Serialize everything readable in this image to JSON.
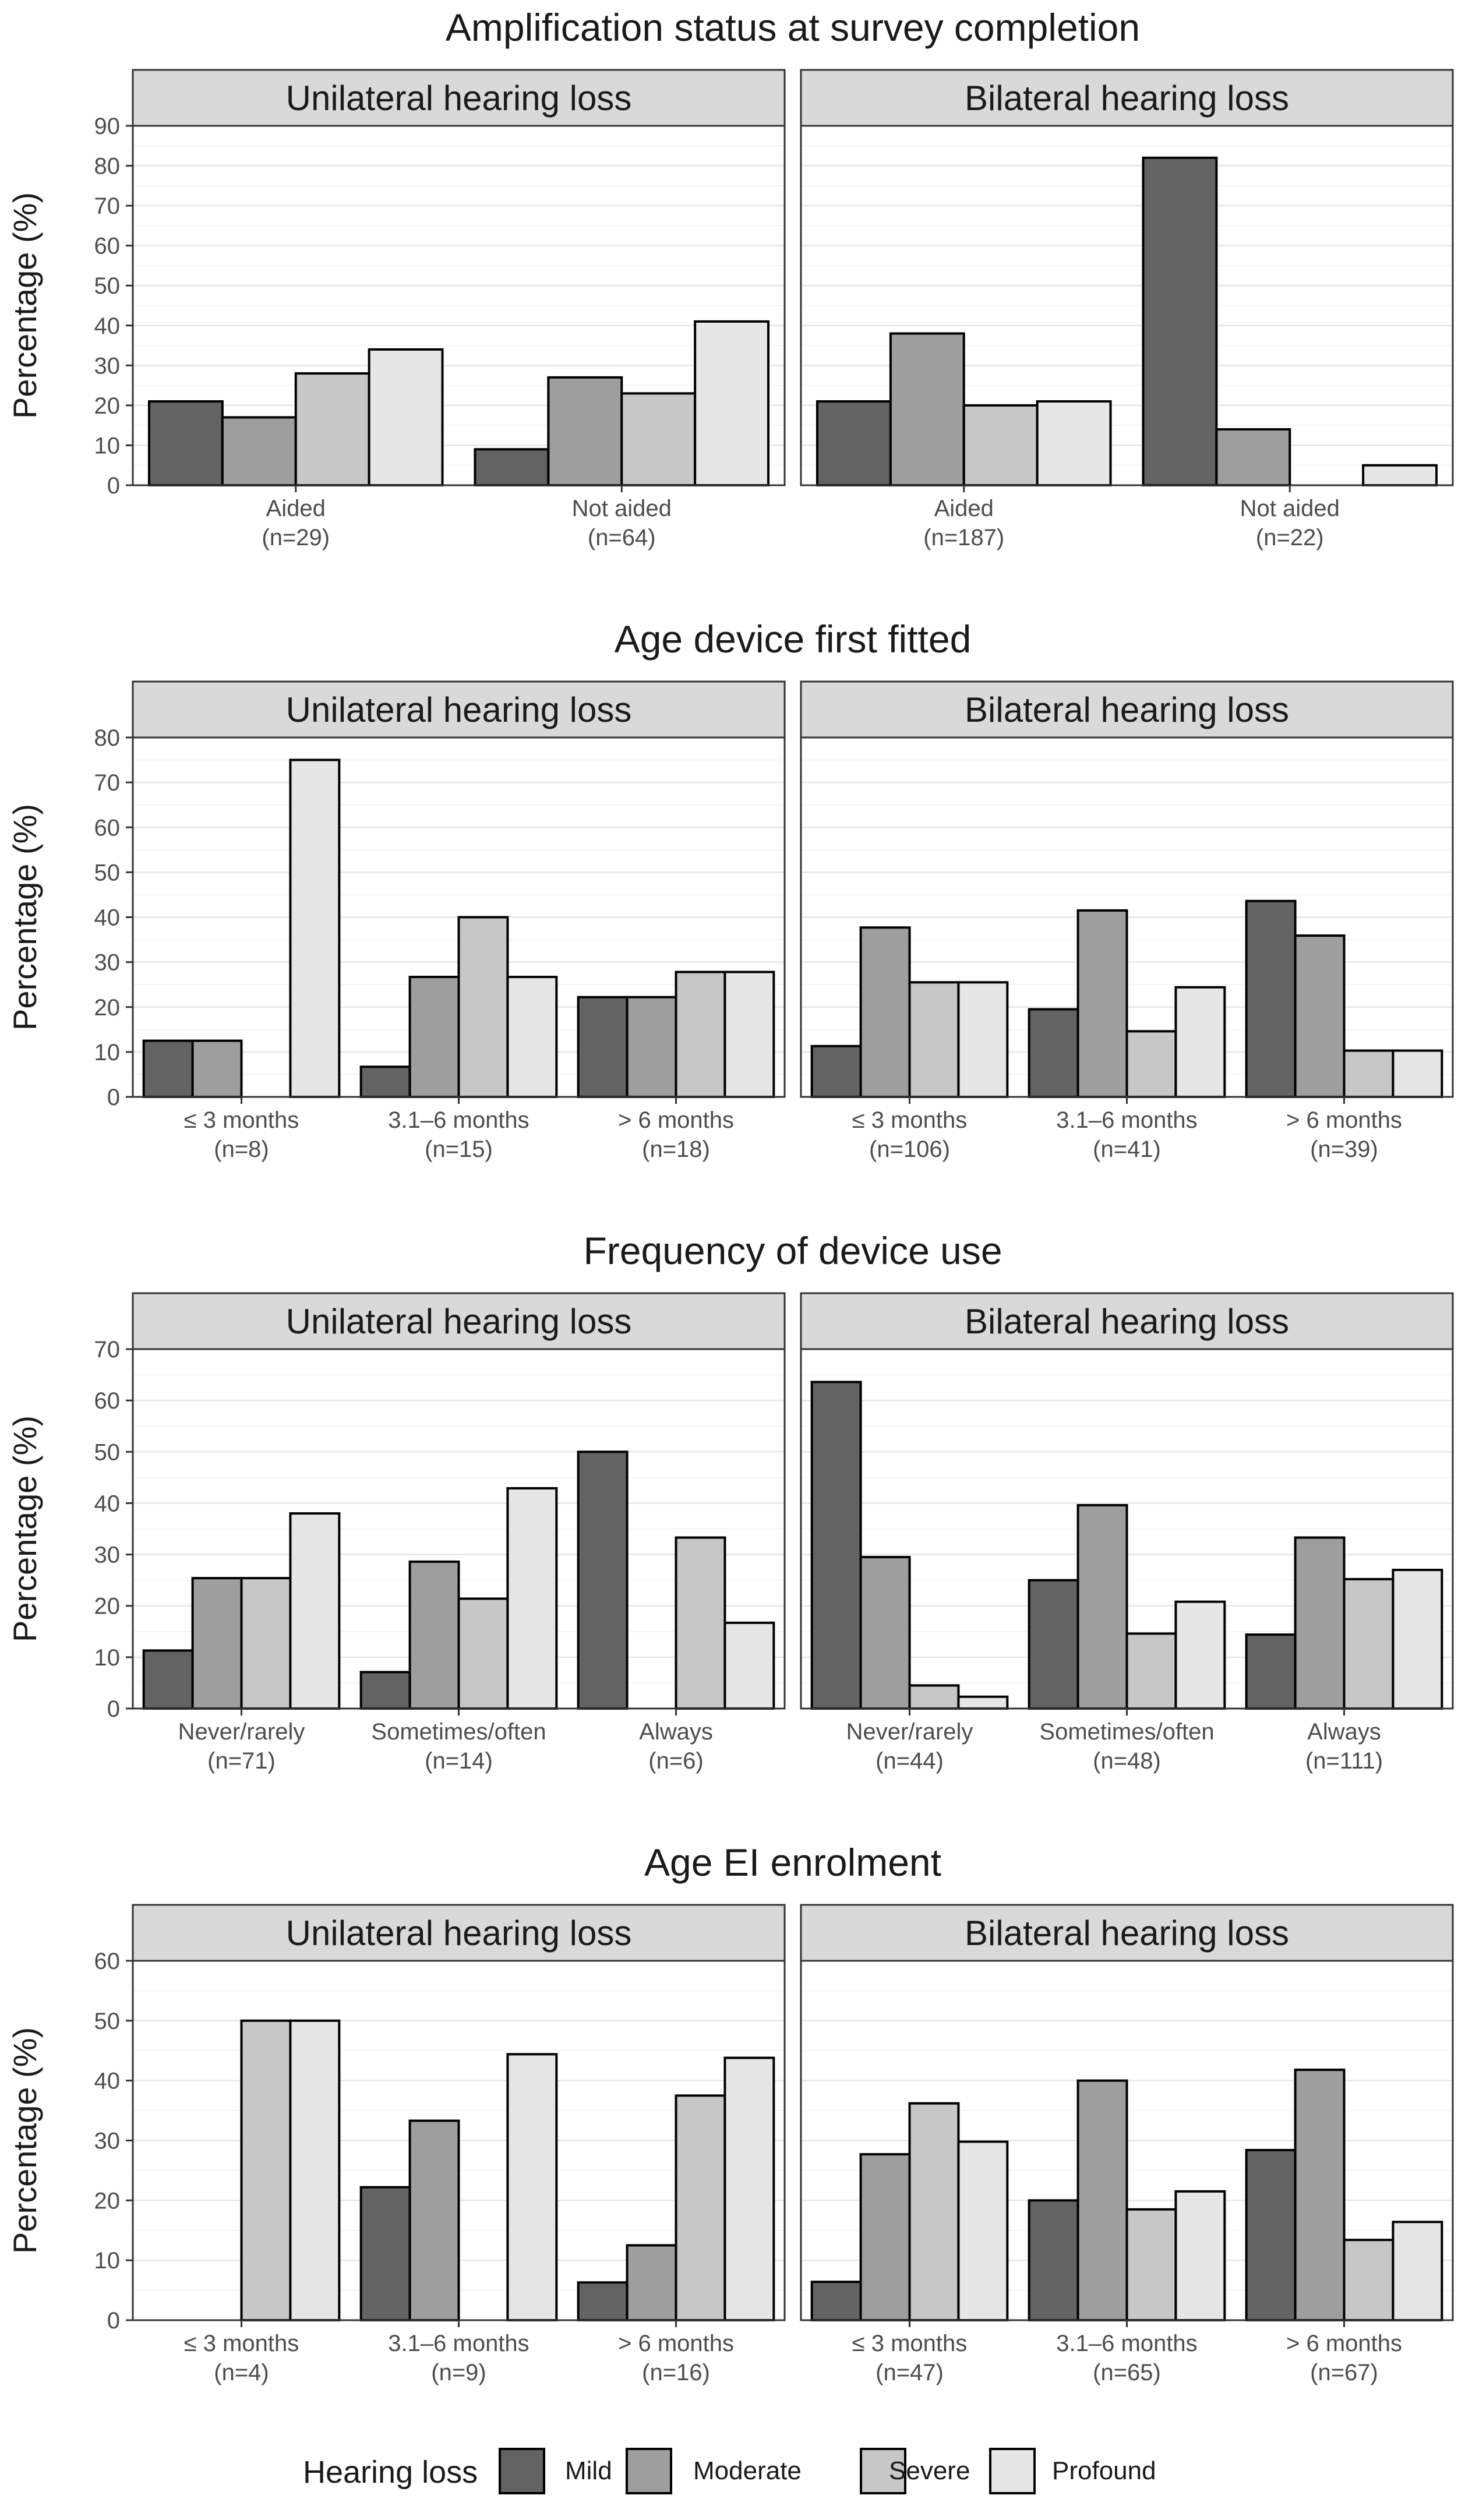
{
  "legend": {
    "title": "Hearing loss",
    "levels": [
      "Mild",
      "Moderate",
      "Severe",
      "Profound"
    ],
    "colors": [
      "#636363",
      "#9e9e9e",
      "#c7c7c7",
      "#e6e6e6"
    ]
  },
  "chart_data": [
    {
      "type": "bar",
      "title": "Amplification status at survey completion",
      "ylabel": "Percentage (%)",
      "ylim": [
        0,
        90
      ],
      "yticks": [
        "0",
        "10",
        "20",
        "30",
        "40",
        "50",
        "60",
        "70",
        "80",
        "90"
      ],
      "panels": [
        {
          "strip": "Unilateral hearing loss",
          "categories": [
            {
              "label": "Aided",
              "n": "(n=29)",
              "values": [
                21,
                17,
                28,
                34
              ]
            },
            {
              "label": "Not aided",
              "n": "(n=64)",
              "values": [
                9,
                27,
                23,
                41
              ]
            }
          ]
        },
        {
          "strip": "Bilateral hearing loss",
          "categories": [
            {
              "label": "Aided",
              "n": "(n=187)",
              "values": [
                21,
                38,
                20,
                21
              ]
            },
            {
              "label": "Not aided",
              "n": "(n=22)",
              "values": [
                82,
                14,
                0,
                5
              ]
            }
          ]
        }
      ]
    },
    {
      "type": "bar",
      "title": "Age device first fitted",
      "ylabel": "Percentage (%)",
      "ylim": [
        0,
        80
      ],
      "yticks": [
        "0",
        "10",
        "20",
        "30",
        "40",
        "50",
        "60",
        "70",
        "80"
      ],
      "panels": [
        {
          "strip": "Unilateral hearing loss",
          "categories": [
            {
              "label": "≤ 3 months",
              "n": "(n=8)",
              "values": [
                12.5,
                12.5,
                0,
                75
              ]
            },
            {
              "label": "3.1–6 months",
              "n": "(n=15)",
              "values": [
                6.7,
                26.7,
                40,
                26.7
              ]
            },
            {
              "label": "> 6 months",
              "n": "(n=18)",
              "values": [
                22.2,
                22.2,
                27.8,
                27.8
              ]
            }
          ]
        },
        {
          "strip": "Bilateral hearing loss",
          "categories": [
            {
              "label": "≤ 3 months",
              "n": "(n=106)",
              "values": [
                11.3,
                37.7,
                25.5,
                25.5
              ]
            },
            {
              "label": "3.1–6 months",
              "n": "(n=41)",
              "values": [
                19.5,
                41.5,
                14.6,
                24.4
              ]
            },
            {
              "label": "> 6 months",
              "n": "(n=39)",
              "values": [
                43.6,
                35.9,
                10.3,
                10.3
              ]
            }
          ]
        }
      ]
    },
    {
      "type": "bar",
      "title": "Frequency of device use",
      "ylabel": "Percentage (%)",
      "ylim": [
        0,
        70
      ],
      "yticks": [
        "0",
        "10",
        "20",
        "30",
        "40",
        "50",
        "60",
        "70"
      ],
      "panels": [
        {
          "strip": "Unilateral hearing loss",
          "categories": [
            {
              "label": "Never/rarely",
              "n": "(n=71)",
              "values": [
                11.3,
                25.4,
                25.4,
                38
              ]
            },
            {
              "label": "Sometimes/often",
              "n": "(n=14)",
              "values": [
                7.1,
                28.6,
                21.4,
                42.9
              ]
            },
            {
              "label": "Always",
              "n": "(n=6)",
              "values": [
                50,
                0,
                33.3,
                16.7
              ]
            }
          ]
        },
        {
          "strip": "Bilateral hearing loss",
          "categories": [
            {
              "label": "Never/rarely",
              "n": "(n=44)",
              "values": [
                63.6,
                29.5,
                4.5,
                2.3
              ]
            },
            {
              "label": "Sometimes/often",
              "n": "(n=48)",
              "values": [
                25,
                39.6,
                14.6,
                20.8
              ]
            },
            {
              "label": "Always",
              "n": "(n=111)",
              "values": [
                14.4,
                33.3,
                25.2,
                27
              ]
            }
          ]
        }
      ]
    },
    {
      "type": "bar",
      "title": "Age EI enrolment",
      "ylabel": "Percentage (%)",
      "ylim": [
        0,
        60
      ],
      "yticks": [
        "0",
        "10",
        "20",
        "30",
        "40",
        "50",
        "60"
      ],
      "panels": [
        {
          "strip": "Unilateral hearing loss",
          "categories": [
            {
              "label": "≤ 3 months",
              "n": "(n=4)",
              "values": [
                0,
                0,
                50,
                50
              ]
            },
            {
              "label": "3.1–6 months",
              "n": "(n=9)",
              "values": [
                22.2,
                33.3,
                0,
                44.4
              ]
            },
            {
              "label": "> 6 months",
              "n": "(n=16)",
              "values": [
                6.3,
                12.5,
                37.5,
                43.8
              ]
            }
          ]
        },
        {
          "strip": "Bilateral hearing loss",
          "categories": [
            {
              "label": "≤ 3 months",
              "n": "(n=47)",
              "values": [
                6.4,
                27.7,
                36.2,
                29.8
              ]
            },
            {
              "label": "3.1–6 months",
              "n": "(n=65)",
              "values": [
                20,
                40,
                18.5,
                21.5
              ]
            },
            {
              "label": "> 6 months",
              "n": "(n=67)",
              "values": [
                28.4,
                41.8,
                13.4,
                16.4
              ]
            }
          ]
        }
      ]
    }
  ]
}
